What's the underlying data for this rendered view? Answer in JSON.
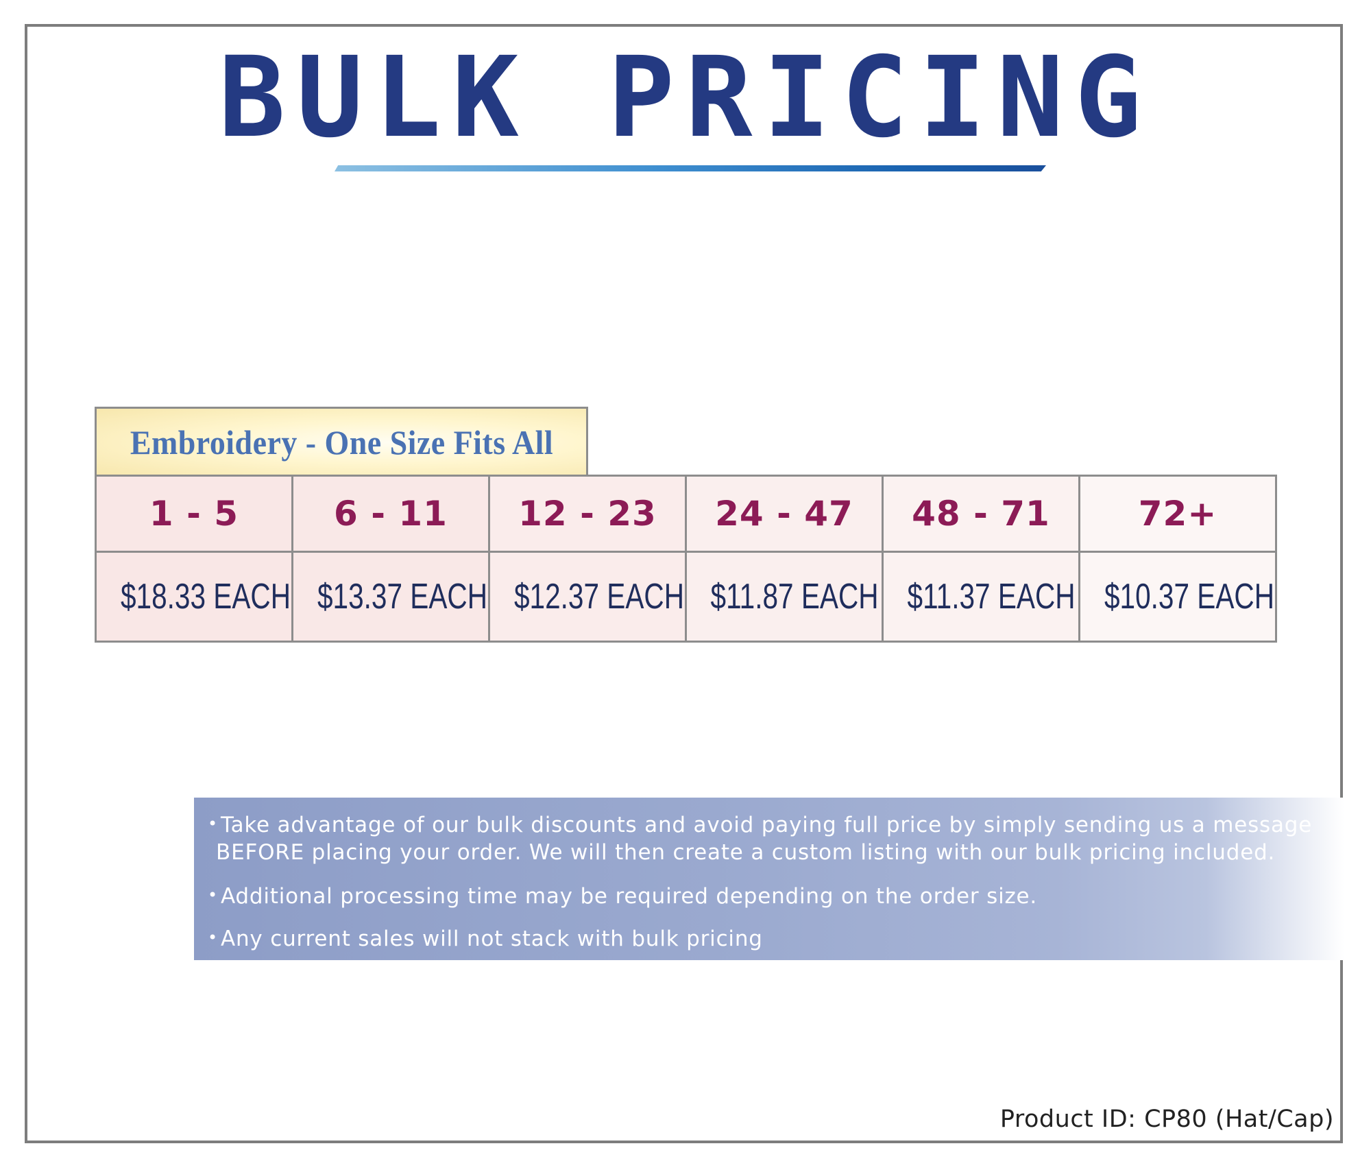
{
  "title": "BULK PRICING",
  "table": {
    "caption": "Embroidery - One Size Fits All",
    "quantities": [
      "1 - 5",
      "6 - 11",
      "12 - 23",
      "24 - 47",
      "48 - 71",
      "72+"
    ],
    "prices": [
      "$18.33 EACH",
      "$13.37 EACH",
      "$12.37 EACH",
      "$11.87 EACH",
      "$11.37 EACH",
      "$10.37 EACH"
    ]
  },
  "notes": {
    "bullet": "•",
    "note1_line1": "Take advantage of our bulk discounts and avoid paying full price by simply sending us a message",
    "note1_line2": "BEFORE placing your order. We will then create a custom listing with our bulk pricing included.",
    "note2": "Additional processing time may be required depending on the order size.",
    "note3": "Any current sales will not stack with bulk pricing"
  },
  "product_id": "Product ID: CP80 (Hat/Cap)",
  "colors": {
    "title": "#243a82",
    "quantity_text": "#8c1b56",
    "price_text": "#1f2d5c",
    "caption_text": "#4a72b3",
    "notes_background": "#9aa9cf"
  }
}
